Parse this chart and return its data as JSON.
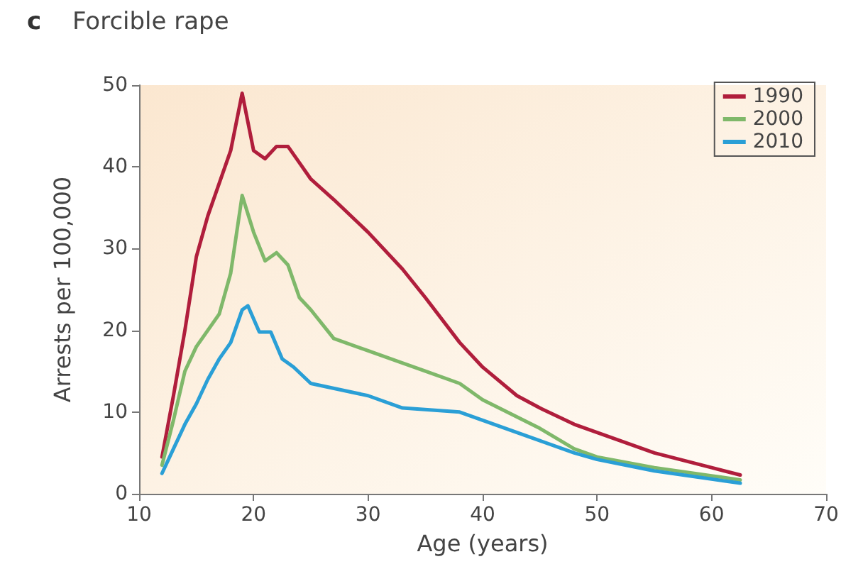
{
  "chart_data": {
    "type": "line",
    "title": "c",
    "subtitle": "Forcible rape",
    "xlabel": "Age (years)",
    "ylabel": "Arrests per 100,000",
    "xlim": [
      10,
      70
    ],
    "xticks": [
      10,
      20,
      30,
      40,
      50,
      60,
      70
    ],
    "ylim": [
      0,
      50
    ],
    "yticks": [
      0,
      10,
      20,
      30,
      40,
      50
    ],
    "grid": false,
    "legend": "top right",
    "marker": "none",
    "line_style": "solid",
    "series": [
      {
        "name": "1990",
        "color": "#b01e3c",
        "x": [
          12,
          13,
          14,
          15,
          16,
          17,
          18,
          19,
          20,
          21,
          22,
          23,
          24,
          25,
          27,
          30,
          33,
          35,
          38,
          40,
          43,
          45,
          48,
          50,
          55,
          60,
          62.5
        ],
        "values": [
          4.5,
          12,
          20,
          29,
          34,
          38,
          42,
          49,
          42,
          41,
          42.5,
          42.5,
          40.5,
          38.5,
          36,
          32,
          27.5,
          24,
          18.5,
          15.5,
          12,
          10.5,
          8.5,
          7.5,
          5,
          3.2,
          2.3
        ]
      },
      {
        "name": "2000",
        "color": "#7fb86a",
        "x": [
          12,
          13,
          14,
          15,
          16,
          17,
          18,
          19,
          20,
          21,
          22,
          23,
          24,
          25,
          27,
          30,
          35,
          38,
          40,
          45,
          48,
          50,
          55,
          60,
          62.5
        ],
        "values": [
          3.5,
          9,
          15,
          18,
          20,
          22,
          27,
          36.5,
          32,
          28.5,
          29.5,
          28,
          24,
          22.5,
          19,
          17.5,
          15,
          13.5,
          11.5,
          8,
          5.5,
          4.5,
          3.2,
          2.2,
          1.7
        ]
      },
      {
        "name": "2010",
        "color": "#2a9fd6",
        "x": [
          12,
          13,
          14,
          15,
          16,
          17,
          18,
          19,
          19.5,
          20.5,
          21.5,
          22.5,
          23.5,
          25,
          30,
          33,
          38,
          40,
          45,
          48,
          50,
          55,
          60,
          62.5
        ],
        "values": [
          2.5,
          5.5,
          8.5,
          11,
          14,
          16.5,
          18.5,
          22.5,
          23,
          19.8,
          19.8,
          16.5,
          15.5,
          13.5,
          12,
          10.5,
          10,
          9,
          6.5,
          5,
          4.2,
          2.8,
          1.8,
          1.3
        ]
      }
    ]
  }
}
